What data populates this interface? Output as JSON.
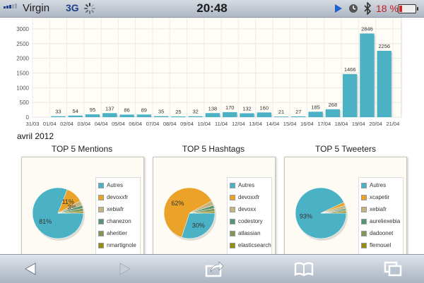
{
  "status_bar": {
    "carrier": "Virgin",
    "network": "3G",
    "time": "20:48",
    "battery": "18 %"
  },
  "chart_data": [
    {
      "type": "bar",
      "categories": [
        "31/03",
        "01/04",
        "02/04",
        "03/04",
        "04/04",
        "05/04",
        "06/04",
        "07/04",
        "08/04",
        "09/04",
        "10/04",
        "11/04",
        "12/04",
        "13/04",
        "14/04",
        "15/04",
        "16/04",
        "17/04",
        "18/04",
        "19/04",
        "20/04",
        "21/04"
      ],
      "values": [
        null,
        33,
        54,
        95,
        137,
        86,
        89,
        35,
        25,
        32,
        138,
        170,
        132,
        160,
        21,
        27,
        185,
        268,
        1466,
        2846,
        2256,
        null
      ],
      "yticks": [
        0,
        500,
        1000,
        1500,
        2000,
        2500,
        3000
      ],
      "ylim": [
        0,
        3000
      ],
      "grid": true,
      "color": "#4bb2c5"
    },
    {
      "type": "pie",
      "title": "TOP 5 Mentions",
      "labels": [
        "Autres",
        "devoxxfr",
        "xebiafr",
        "chanezon",
        "aheritier",
        "nmartignole"
      ],
      "values": [
        81,
        11,
        3,
        2,
        2,
        1
      ],
      "slice_labels": [
        "81%",
        "11%",
        "3%",
        "",
        "",
        ""
      ]
    },
    {
      "type": "pie",
      "title": "TOP 5 Hashtags",
      "labels": [
        "Autres",
        "devoxxfr",
        "devoxx",
        "codestory",
        "atlassian",
        "elasticsearch"
      ],
      "values": [
        30,
        62,
        3,
        2,
        2,
        1
      ],
      "slice_labels": [
        "30%",
        "62%",
        "",
        "",
        "",
        ""
      ]
    },
    {
      "type": "pie",
      "title": "TOP 5 Tweeters",
      "labels": [
        "Autres",
        "xcapetir",
        "xebiafr",
        "aureliexebia",
        "dadoonet",
        "flemouel"
      ],
      "values": [
        93,
        2,
        2,
        1,
        1,
        1
      ],
      "slice_labels": [
        "93%",
        "",
        "",
        "",
        "",
        ""
      ]
    }
  ],
  "month_label": "avril 2012",
  "pie_colors": [
    "#4bb2c5",
    "#eaa228",
    "#c5b47f",
    "#579575",
    "#839557",
    "#958c12"
  ],
  "toolbar": {
    "back": "back-arrow-icon",
    "forward": "forward-arrow-icon",
    "share": "share-icon",
    "bookmarks": "book-icon",
    "tabs": "tabs-icon"
  }
}
